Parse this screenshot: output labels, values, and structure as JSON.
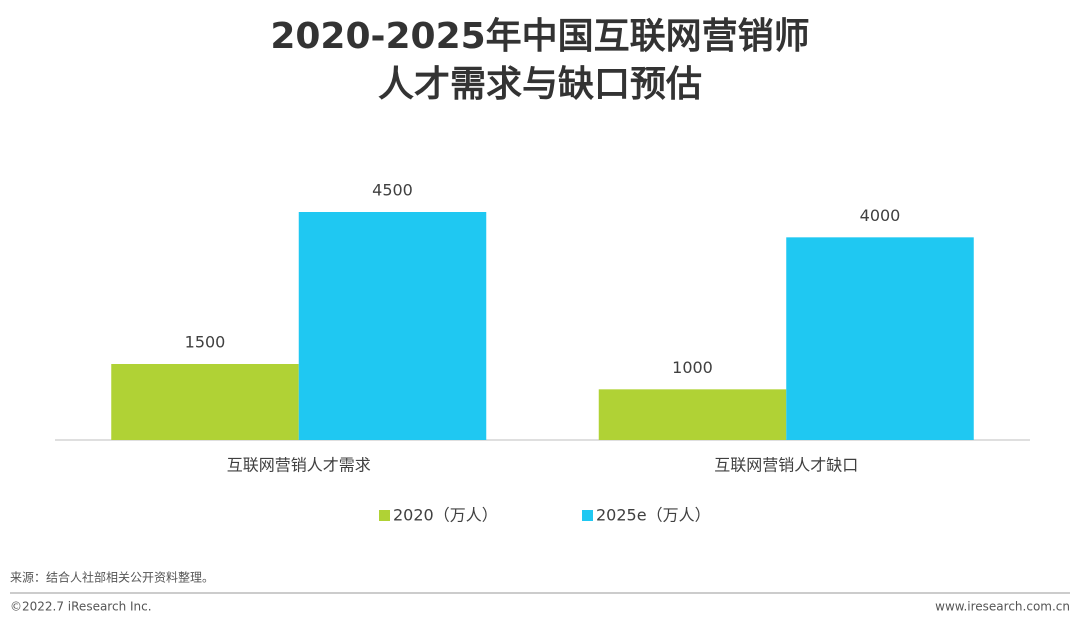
{
  "chart_data": {
    "type": "bar",
    "title": [
      "2020-2025年中国互联网营销师",
      "人才需求与缺口预估"
    ],
    "categories": [
      "互联网营销人才需求",
      "互联网营销人才缺口"
    ],
    "series": [
      {
        "name": "2020（万人）",
        "color": "#b0d235",
        "values": [
          1500,
          1000
        ]
      },
      {
        "name": "2025e（万人）",
        "color": "#1fc8f2",
        "values": [
          4500,
          4000
        ]
      }
    ],
    "legend": "bottom"
  },
  "source": "来源：结合人社部相关公开资料整理。",
  "footer": {
    "left": "©2022.7 iResearch Inc.",
    "right": "www.iresearch.com.cn"
  }
}
